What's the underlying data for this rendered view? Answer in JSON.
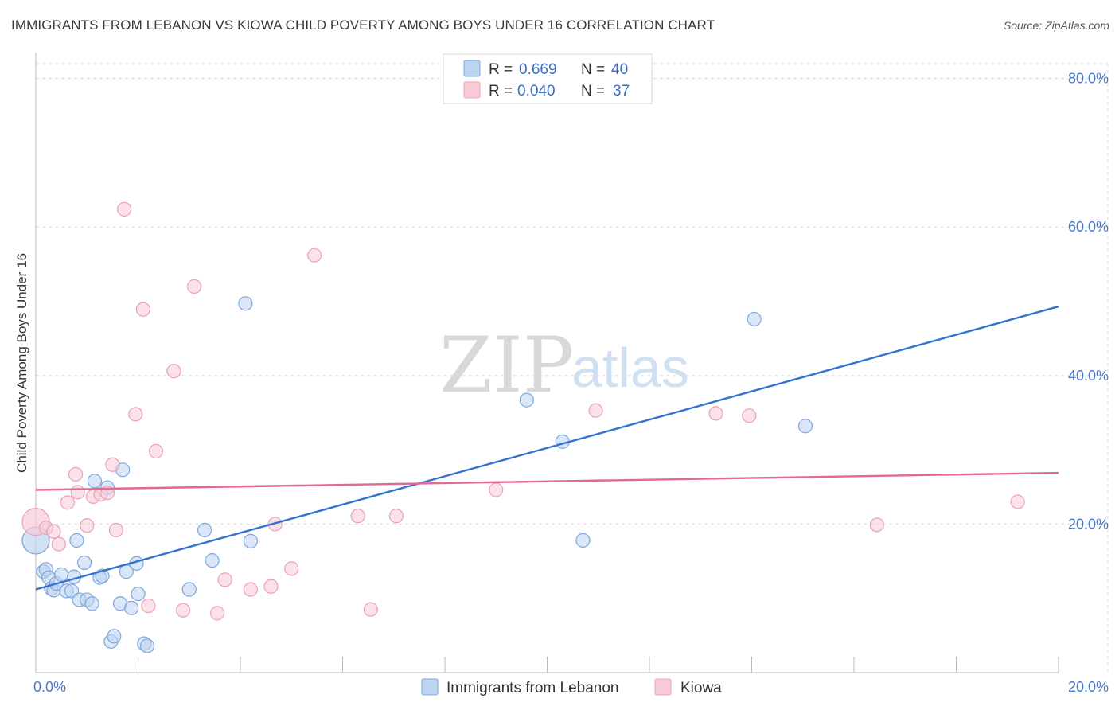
{
  "title": "IMMIGRANTS FROM LEBANON VS KIOWA CHILD POVERTY AMONG BOYS UNDER 16 CORRELATION CHART",
  "source": "Source: ZipAtlas.com",
  "watermark": {
    "zip": "ZIP",
    "atlas": "atlas"
  },
  "colors": {
    "blue": "#3472d0",
    "blue_fill": "#bcd4f2",
    "blue_stroke": "#7fa6dc",
    "pink": "#e26992",
    "pink_fill": "#f8cbd8",
    "pink_stroke": "#eba0b8",
    "tick_text": "#4a78c8",
    "grid": "#d9d9d9"
  },
  "legend": {
    "rows": [
      {
        "r_label": "R =",
        "r_value": "0.669",
        "n_label": "N =",
        "n_value": "40",
        "series": "blue"
      },
      {
        "r_label": "R =",
        "r_value": "0.040",
        "n_label": "N =",
        "n_value": "37",
        "series": "pink"
      }
    ]
  },
  "chart_data": {
    "type": "scatter",
    "title": "IMMIGRANTS FROM LEBANON VS KIOWA CHILD POVERTY AMONG BOYS UNDER 16 CORRELATION CHART",
    "xlabel": "",
    "ylabel": "Child Poverty Among Boys Under 16",
    "xlim": [
      0,
      20
    ],
    "ylim": [
      0,
      82
    ],
    "x_tick_labels": [
      "0.0%",
      "20.0%"
    ],
    "y_ticks": [
      20,
      40,
      60,
      80
    ],
    "y_tick_labels": [
      "20.0%",
      "40.0%",
      "60.0%",
      "80.0%"
    ],
    "grid": true,
    "legend_position": "bottom",
    "series": [
      {
        "name": "Immigrants from Lebanon",
        "color": "blue",
        "trend": {
          "x": [
            0,
            20
          ],
          "y": [
            11.2,
            49.3
          ]
        },
        "points": [
          {
            "x": 0.0,
            "y": 17.8,
            "big": true
          },
          {
            "x": 0.15,
            "y": 13.6
          },
          {
            "x": 0.2,
            "y": 13.9
          },
          {
            "x": 0.25,
            "y": 12.8
          },
          {
            "x": 0.3,
            "y": 11.3
          },
          {
            "x": 0.35,
            "y": 11.1
          },
          {
            "x": 0.4,
            "y": 12.0
          },
          {
            "x": 0.5,
            "y": 13.2
          },
          {
            "x": 0.6,
            "y": 11.0
          },
          {
            "x": 0.7,
            "y": 11.0
          },
          {
            "x": 0.75,
            "y": 12.9
          },
          {
            "x": 0.8,
            "y": 17.8
          },
          {
            "x": 0.85,
            "y": 9.8
          },
          {
            "x": 0.95,
            "y": 14.8
          },
          {
            "x": 1.0,
            "y": 9.8
          },
          {
            "x": 1.1,
            "y": 9.3
          },
          {
            "x": 1.15,
            "y": 25.8
          },
          {
            "x": 1.25,
            "y": 12.8
          },
          {
            "x": 1.3,
            "y": 13.0
          },
          {
            "x": 1.4,
            "y": 24.9
          },
          {
            "x": 1.47,
            "y": 4.2
          },
          {
            "x": 1.53,
            "y": 4.9
          },
          {
            "x": 1.65,
            "y": 9.3
          },
          {
            "x": 1.7,
            "y": 27.3
          },
          {
            "x": 1.77,
            "y": 13.6
          },
          {
            "x": 1.87,
            "y": 8.7
          },
          {
            "x": 1.97,
            "y": 14.7
          },
          {
            "x": 2.0,
            "y": 10.6
          },
          {
            "x": 2.12,
            "y": 3.9
          },
          {
            "x": 2.18,
            "y": 3.6
          },
          {
            "x": 3.0,
            "y": 11.2
          },
          {
            "x": 3.3,
            "y": 19.2
          },
          {
            "x": 3.45,
            "y": 15.1
          },
          {
            "x": 4.1,
            "y": 49.7
          },
          {
            "x": 4.2,
            "y": 17.7
          },
          {
            "x": 9.6,
            "y": 36.7
          },
          {
            "x": 10.3,
            "y": 31.1
          },
          {
            "x": 10.7,
            "y": 17.8
          },
          {
            "x": 14.05,
            "y": 47.6
          },
          {
            "x": 15.05,
            "y": 33.2
          }
        ]
      },
      {
        "name": "Kiowa",
        "color": "pink",
        "trend": {
          "x": [
            0,
            20
          ],
          "y": [
            24.6,
            26.9
          ]
        },
        "points": [
          {
            "x": 0.0,
            "y": 20.3,
            "big": true
          },
          {
            "x": 0.2,
            "y": 19.5
          },
          {
            "x": 0.35,
            "y": 19.0
          },
          {
            "x": 0.45,
            "y": 17.3
          },
          {
            "x": 0.62,
            "y": 22.9
          },
          {
            "x": 0.78,
            "y": 26.7
          },
          {
            "x": 0.82,
            "y": 24.3
          },
          {
            "x": 1.0,
            "y": 19.8
          },
          {
            "x": 1.12,
            "y": 23.7
          },
          {
            "x": 1.27,
            "y": 24.0
          },
          {
            "x": 1.4,
            "y": 24.2
          },
          {
            "x": 1.5,
            "y": 28.0
          },
          {
            "x": 1.57,
            "y": 19.2
          },
          {
            "x": 1.73,
            "y": 62.4
          },
          {
            "x": 1.95,
            "y": 34.8
          },
          {
            "x": 2.1,
            "y": 48.9
          },
          {
            "x": 2.2,
            "y": 9.0
          },
          {
            "x": 2.35,
            "y": 29.8
          },
          {
            "x": 2.7,
            "y": 40.6
          },
          {
            "x": 2.88,
            "y": 8.4
          },
          {
            "x": 3.1,
            "y": 52.0
          },
          {
            "x": 3.55,
            "y": 8.0
          },
          {
            "x": 3.7,
            "y": 12.5
          },
          {
            "x": 4.2,
            "y": 11.2
          },
          {
            "x": 4.6,
            "y": 11.6
          },
          {
            "x": 4.68,
            "y": 20.0
          },
          {
            "x": 5.0,
            "y": 14.0
          },
          {
            "x": 5.45,
            "y": 56.2
          },
          {
            "x": 6.3,
            "y": 21.1
          },
          {
            "x": 6.55,
            "y": 8.5
          },
          {
            "x": 7.05,
            "y": 21.1
          },
          {
            "x": 9.0,
            "y": 24.6
          },
          {
            "x": 10.95,
            "y": 35.3
          },
          {
            "x": 13.3,
            "y": 34.9
          },
          {
            "x": 13.95,
            "y": 34.6
          },
          {
            "x": 16.45,
            "y": 19.9
          },
          {
            "x": 19.2,
            "y": 23.0
          }
        ]
      }
    ]
  }
}
